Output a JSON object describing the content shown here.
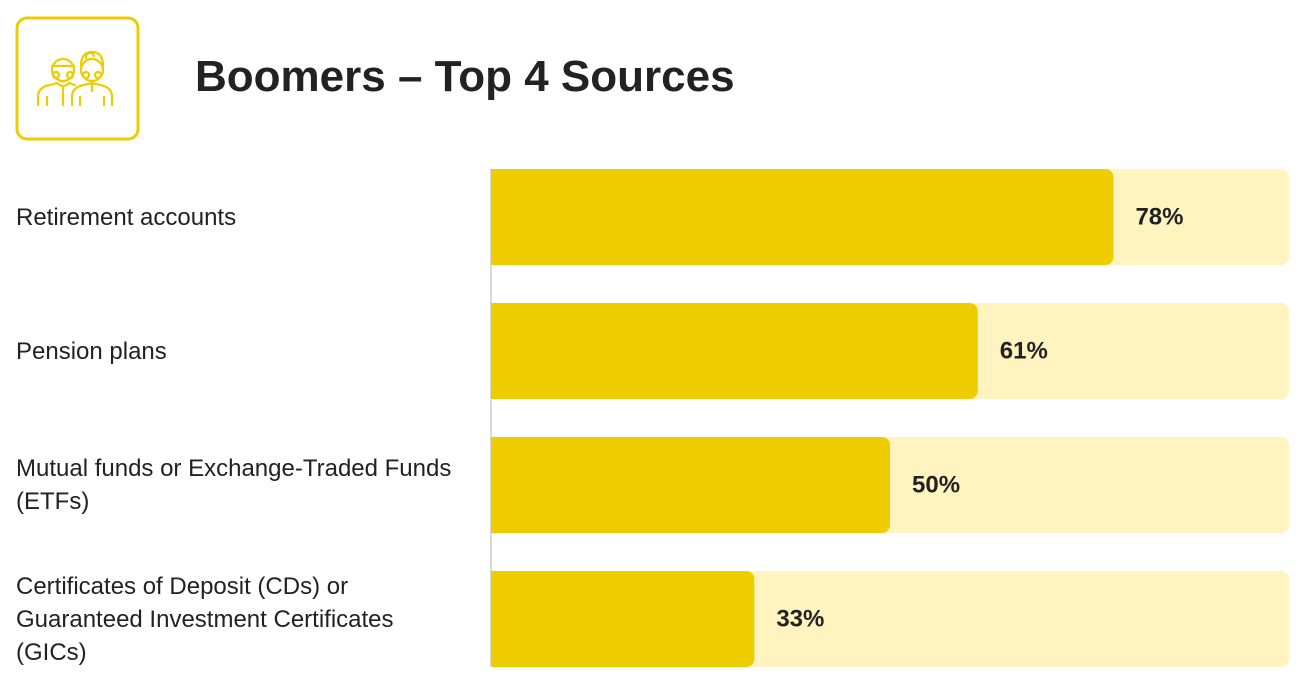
{
  "chart_data": {
    "type": "bar",
    "orientation": "horizontal",
    "title": "Boomers – Top 4 Sources",
    "categories": [
      "Retirement accounts",
      "Pension plans",
      "Mutual funds or Exchange-Traded Funds (ETFs)",
      "Certificates of Deposit (CDs) or Guaranteed Investment Certificates (GICs)"
    ],
    "values": [
      78,
      61,
      50,
      33
    ],
    "value_labels": [
      "78%",
      "61%",
      "50%",
      "33%"
    ],
    "color": "#edcc00",
    "track_color": "#fff4bf",
    "xlim": [
      0,
      100
    ]
  }
}
